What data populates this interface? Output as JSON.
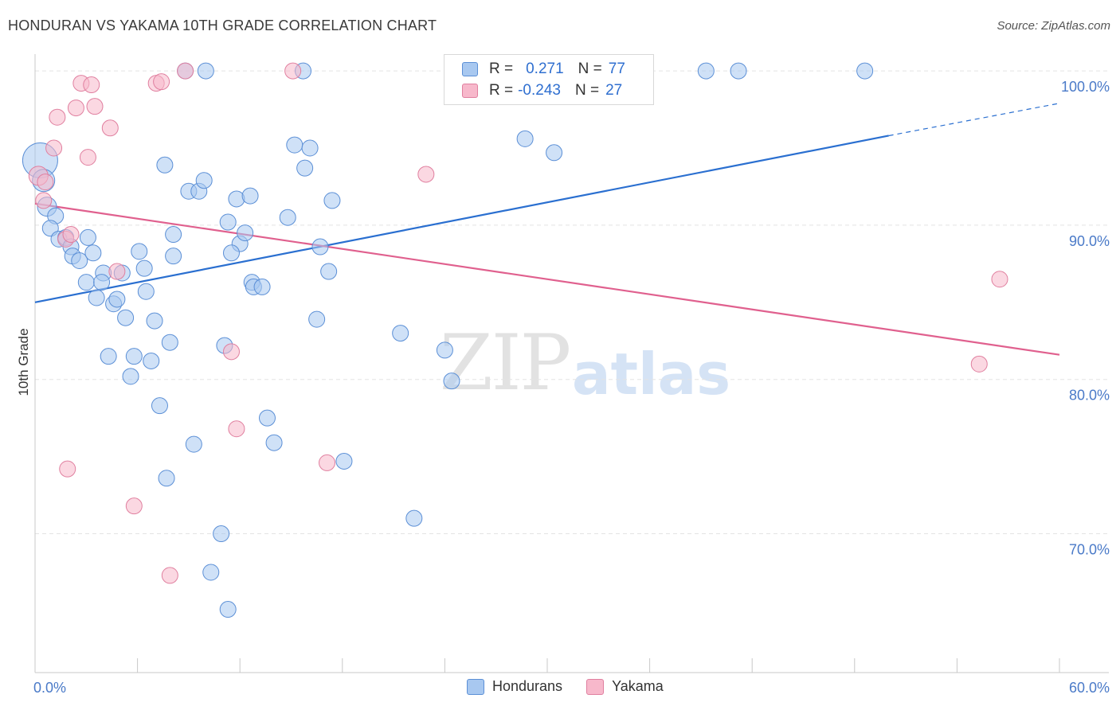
{
  "header": {
    "title": "HONDURAN VS YAKAMA 10TH GRADE CORRELATION CHART",
    "source": "Source: ZipAtlas.com"
  },
  "watermark": {
    "part1": "ZIP",
    "part2": "atlas"
  },
  "legend": {
    "rows": [
      {
        "r_label": "R =",
        "r_value": "0.271",
        "n_label": "N =",
        "n_value": "77",
        "color": "#a8c8f0",
        "border": "#5b8fd6"
      },
      {
        "r_label": "R =",
        "r_value": "-0.243",
        "n_label": "N =",
        "n_value": "27",
        "color": "#f7b8cb",
        "border": "#e07f9f"
      }
    ]
  },
  "bottom_legend": [
    {
      "label": "Hondurans",
      "color": "#a8c8f0",
      "border": "#5b8fd6"
    },
    {
      "label": "Yakama",
      "color": "#f7b8cb",
      "border": "#e07f9f"
    }
  ],
  "chart_data": {
    "type": "scatter",
    "title": "HONDURAN VS YAKAMA 10TH GRADE CORRELATION CHART",
    "xlabel": "",
    "ylabel": "10th Grade",
    "xlim": [
      0,
      60
    ],
    "ylim": [
      61,
      101.5
    ],
    "x_tick_labels": [
      "0.0%",
      "60.0%"
    ],
    "y_ticks": [
      {
        "value": 100,
        "label": "100.0%"
      },
      {
        "value": 90,
        "label": "90.0%"
      },
      {
        "value": 80,
        "label": "80.0%"
      },
      {
        "value": 70,
        "label": "70.0%"
      }
    ],
    "grid": "horizontal dashed",
    "series": [
      {
        "name": "Hondurans",
        "color": "#a8c8f0",
        "stroke": "#5b8fd6",
        "trend": {
          "x0": 0,
          "y0": 85.0,
          "x1": 50.0,
          "y1": 95.8,
          "x_ext": 60.0,
          "y_ext": 97.9,
          "color": "#2a6fd0"
        },
        "points": [
          [
            0.3,
            94.2,
            22
          ],
          [
            0.5,
            92.9,
            14
          ],
          [
            0.7,
            91.2,
            12
          ],
          [
            1.2,
            90.6,
            10
          ],
          [
            0.9,
            89.8,
            10
          ],
          [
            1.4,
            89.1,
            10
          ],
          [
            1.8,
            89.2,
            10
          ],
          [
            3.1,
            89.2,
            10
          ],
          [
            2.1,
            88.6,
            10
          ],
          [
            2.2,
            88.0,
            10
          ],
          [
            2.6,
            87.7,
            10
          ],
          [
            3.4,
            88.2,
            10
          ],
          [
            4.0,
            86.9,
            10
          ],
          [
            3.0,
            86.3,
            10
          ],
          [
            3.9,
            86.3,
            10
          ],
          [
            5.1,
            86.9,
            10
          ],
          [
            3.6,
            85.3,
            10
          ],
          [
            4.6,
            84.9,
            10
          ],
          [
            4.8,
            85.2,
            10
          ],
          [
            5.3,
            84.0,
            10
          ],
          [
            6.1,
            88.3,
            10
          ],
          [
            6.4,
            87.2,
            10
          ],
          [
            6.5,
            85.7,
            10
          ],
          [
            7.0,
            83.8,
            10
          ],
          [
            7.6,
            93.9,
            10
          ],
          [
            8.1,
            89.4,
            10
          ],
          [
            8.1,
            88.0,
            10
          ],
          [
            7.9,
            82.4,
            10
          ],
          [
            9.0,
            92.2,
            10
          ],
          [
            9.6,
            92.2,
            10
          ],
          [
            9.9,
            92.9,
            10
          ],
          [
            10.0,
            100.0,
            10
          ],
          [
            8.8,
            100.0,
            10
          ],
          [
            4.3,
            81.5,
            10
          ],
          [
            5.8,
            81.5,
            10
          ],
          [
            5.6,
            80.2,
            10
          ],
          [
            6.8,
            81.2,
            10
          ],
          [
            7.3,
            78.3,
            10
          ],
          [
            9.3,
            75.8,
            10
          ],
          [
            7.7,
            73.6,
            10
          ],
          [
            11.3,
            90.2,
            10
          ],
          [
            11.8,
            91.7,
            10
          ],
          [
            12.0,
            88.8,
            10
          ],
          [
            11.5,
            88.2,
            10
          ],
          [
            12.6,
            91.9,
            10
          ],
          [
            12.3,
            89.5,
            10
          ],
          [
            12.7,
            86.3,
            10
          ],
          [
            12.8,
            86.0,
            10
          ],
          [
            13.3,
            86.0,
            10
          ],
          [
            11.1,
            82.2,
            10
          ],
          [
            13.6,
            77.5,
            10
          ],
          [
            14.0,
            75.9,
            10
          ],
          [
            10.9,
            70.0,
            10
          ],
          [
            10.3,
            67.5,
            10
          ],
          [
            11.3,
            65.1,
            10
          ],
          [
            14.8,
            90.5,
            10
          ],
          [
            15.2,
            95.2,
            10
          ],
          [
            15.8,
            93.7,
            10
          ],
          [
            16.1,
            95.0,
            10
          ],
          [
            17.4,
            91.6,
            10
          ],
          [
            16.7,
            88.6,
            10
          ],
          [
            17.2,
            87.0,
            10
          ],
          [
            16.5,
            83.9,
            10
          ],
          [
            15.7,
            100.0,
            10
          ],
          [
            18.1,
            74.7,
            10
          ],
          [
            21.4,
            83.0,
            10
          ],
          [
            22.2,
            71.0,
            10
          ],
          [
            24.0,
            81.9,
            10
          ],
          [
            24.4,
            79.9,
            10
          ],
          [
            27.1,
            100.0,
            10
          ],
          [
            27.6,
            100.0,
            10
          ],
          [
            28.7,
            95.6,
            10
          ],
          [
            30.0,
            100.0,
            10
          ],
          [
            30.4,
            94.7,
            10
          ],
          [
            39.3,
            100.0,
            10
          ],
          [
            41.2,
            100.0,
            10
          ],
          [
            48.6,
            100.0,
            10
          ]
        ]
      },
      {
        "name": "Yakama",
        "color": "#f7b8cb",
        "stroke": "#e07f9f",
        "trend": {
          "x0": 0,
          "y0": 91.4,
          "x1": 60.0,
          "y1": 81.6,
          "color": "#e0608e"
        },
        "points": [
          [
            0.2,
            93.2,
            12
          ],
          [
            0.6,
            92.8,
            10
          ],
          [
            0.5,
            91.6,
            10
          ],
          [
            1.1,
            95.0,
            10
          ],
          [
            1.3,
            97.0,
            10
          ],
          [
            1.8,
            89.1,
            10
          ],
          [
            2.1,
            89.4,
            10
          ],
          [
            2.4,
            97.6,
            10
          ],
          [
            2.7,
            99.2,
            10
          ],
          [
            3.1,
            94.4,
            10
          ],
          [
            3.3,
            99.1,
            10
          ],
          [
            3.5,
            97.7,
            10
          ],
          [
            4.4,
            96.3,
            10
          ],
          [
            4.8,
            87.0,
            10
          ],
          [
            7.1,
            99.2,
            10
          ],
          [
            7.4,
            99.3,
            10
          ],
          [
            8.8,
            100.0,
            10
          ],
          [
            11.5,
            81.8,
            10
          ],
          [
            11.8,
            76.8,
            10
          ],
          [
            15.1,
            100.0,
            10
          ],
          [
            17.1,
            74.6,
            10
          ],
          [
            22.9,
            93.3,
            10
          ],
          [
            1.9,
            74.2,
            10
          ],
          [
            5.8,
            71.8,
            10
          ],
          [
            7.9,
            67.3,
            10
          ],
          [
            56.5,
            86.5,
            10
          ],
          [
            55.3,
            81.0,
            10
          ]
        ]
      }
    ]
  }
}
